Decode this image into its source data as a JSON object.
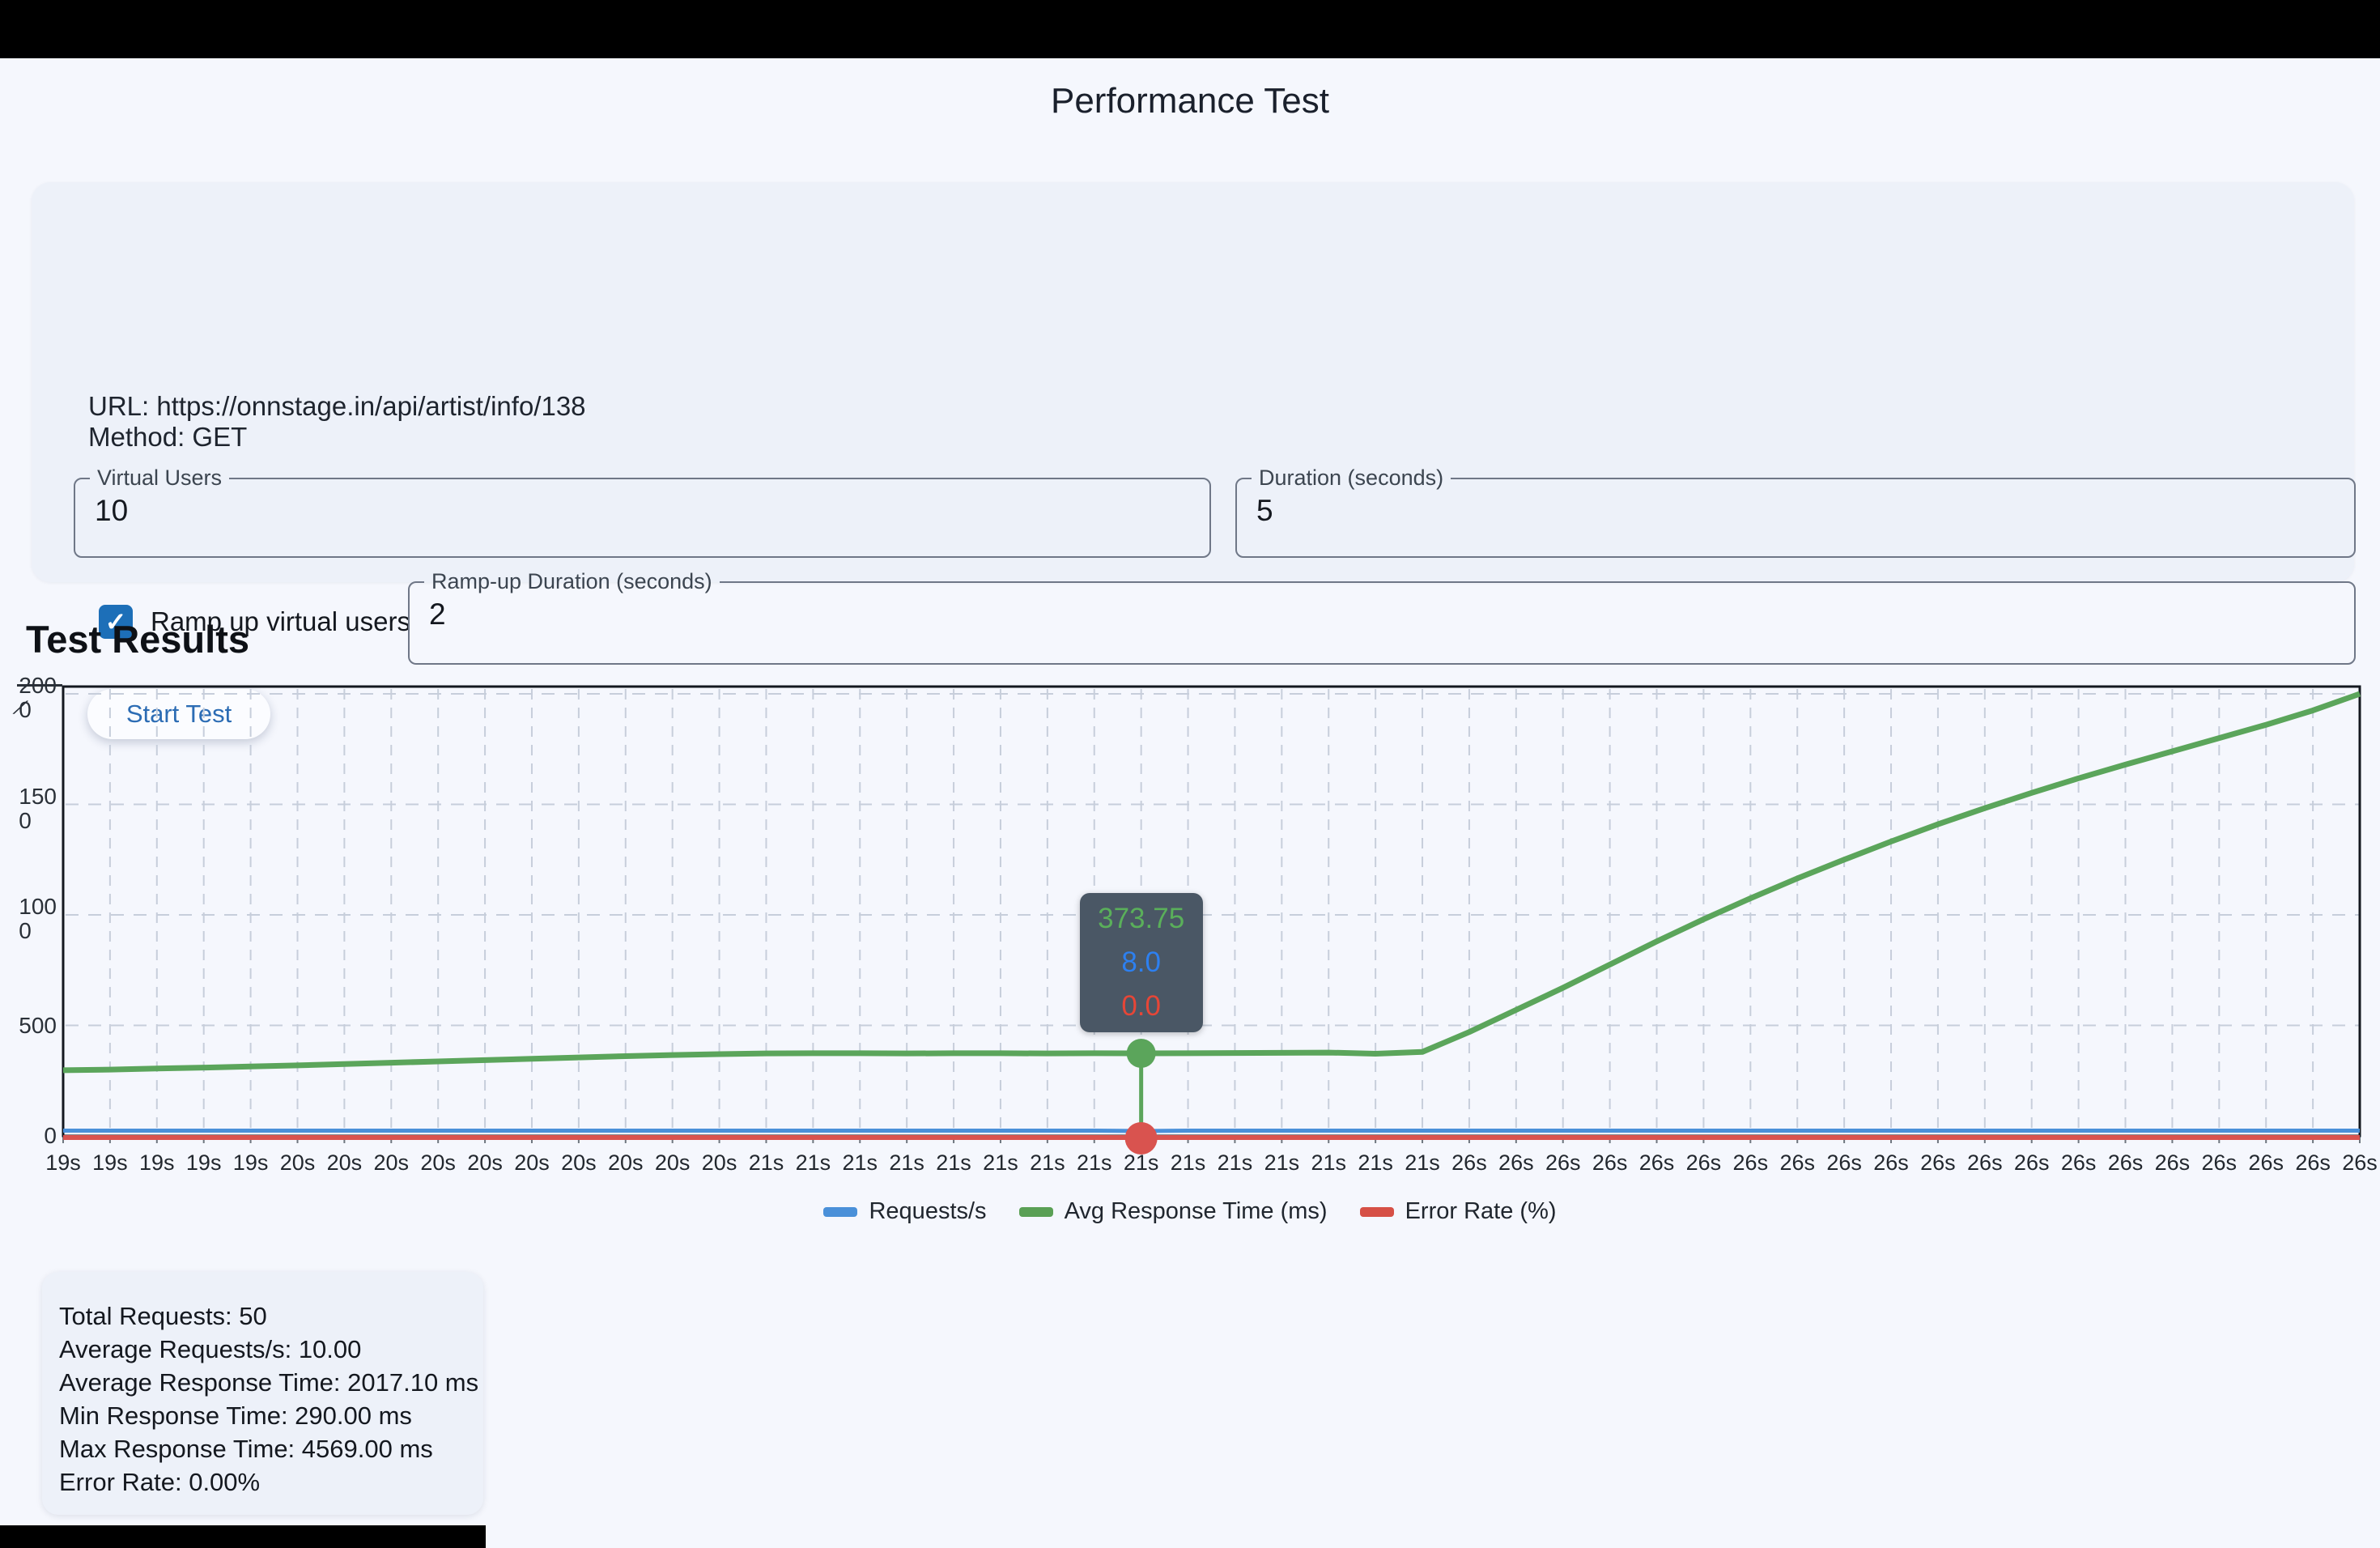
{
  "header": {
    "title": "Performance Test",
    "back_icon": "chevron-left"
  },
  "form": {
    "url_line": "URL: https://onnstage.in/api/artist/info/138",
    "method_line": "Method: GET",
    "virtual_users": {
      "label": "Virtual Users",
      "value": "10"
    },
    "duration": {
      "label": "Duration (seconds)",
      "value": "5"
    },
    "ramp_checkbox": {
      "label": "Ramp up virtual users",
      "checked": true,
      "check_glyph": "✓"
    },
    "ramp_duration": {
      "label": "Ramp-up Duration (seconds)",
      "value": "2"
    },
    "start_button_label": "Start Test"
  },
  "results_heading": "Test Results",
  "chart_data": {
    "type": "line",
    "x_labels": [
      "19s",
      "19s",
      "19s",
      "19s",
      "19s",
      "20s",
      "20s",
      "20s",
      "20s",
      "20s",
      "20s",
      "20s",
      "20s",
      "20s",
      "20s",
      "21s",
      "21s",
      "21s",
      "21s",
      "21s",
      "21s",
      "21s",
      "21s",
      "21s",
      "21s",
      "21s",
      "21s",
      "21s",
      "21s",
      "21s",
      "26s",
      "26s",
      "26s",
      "26s",
      "26s",
      "26s",
      "26s",
      "26s",
      "26s",
      "26s",
      "26s",
      "26s",
      "26s",
      "26s",
      "26s",
      "26s",
      "26s",
      "26s",
      "26s",
      "26s"
    ],
    "ylim": [
      0,
      2000
    ],
    "y_ticks": [
      0,
      500,
      1000,
      1500,
      2000
    ],
    "y_tick_clusters": [
      {
        "value": 2000,
        "lines": "200\n0",
        "overlapped": true
      },
      {
        "value": 1500,
        "lines": "150\n0",
        "overlapped": false
      },
      {
        "value": 1000,
        "lines": "100\n0",
        "overlapped": false
      },
      {
        "value": 500,
        "lines": "500",
        "overlapped": false
      },
      {
        "value": 0,
        "lines": "0",
        "overlapped": false
      }
    ],
    "grid": "dashed",
    "legend_position": "bottom",
    "series": [
      {
        "name": "Requests/s",
        "color": "#4a90d9",
        "axis": "hidden",
        "values": [
          10,
          10,
          10,
          10,
          10,
          10,
          10,
          10,
          10,
          10,
          10,
          10,
          10,
          10,
          10,
          10,
          10,
          10,
          10,
          10,
          10,
          10,
          10,
          8,
          10,
          10,
          10,
          10,
          10,
          10,
          10,
          10,
          10,
          10,
          10,
          10,
          10,
          10,
          10,
          10,
          10,
          10,
          10,
          10,
          10,
          10,
          10,
          10,
          10,
          10
        ]
      },
      {
        "name": "Avg Response Time (ms)",
        "color": "#5ba55b",
        "axis": "left",
        "values": [
          297,
          300,
          305,
          309,
          314,
          319,
          325,
          331,
          337,
          343,
          349,
          355,
          361,
          366,
          370,
          373,
          374,
          374,
          373,
          374,
          374,
          373,
          374,
          373.75,
          374,
          375,
          376,
          377,
          372,
          380,
          470,
          570,
          670,
          775,
          880,
          980,
          1075,
          1165,
          1250,
          1332,
          1410,
          1483,
          1552,
          1618,
          1680,
          1740,
          1800,
          1860,
          1925,
          2000
        ]
      },
      {
        "name": "Error Rate (%)",
        "color": "#d9534f",
        "axis": "hidden",
        "values": [
          0,
          0,
          0,
          0,
          0,
          0,
          0,
          0,
          0,
          0,
          0,
          0,
          0,
          0,
          0,
          0,
          0,
          0,
          0,
          0,
          0,
          0,
          0,
          0,
          0,
          0,
          0,
          0,
          0,
          0,
          0,
          0,
          0,
          0,
          0,
          0,
          0,
          0,
          0,
          0,
          0,
          0,
          0,
          0,
          0,
          0,
          0,
          0,
          0,
          0
        ]
      }
    ],
    "selected_point": {
      "index": 23,
      "x_label": "21s",
      "tooltip_rows": [
        {
          "text": "373.75",
          "color": "#5aaf5a"
        },
        {
          "text": "8.0",
          "color": "#2d80f0"
        },
        {
          "text": "0.0",
          "color": "#e64637"
        }
      ],
      "marker_top_color": "#5ba55b",
      "marker_bottom_color": "#d9534f"
    },
    "legend": [
      {
        "label": "Requests/s",
        "color": "#4a90d9"
      },
      {
        "label": "Avg Response Time (ms)",
        "color": "#5aa055"
      },
      {
        "label": "Error Rate (%)",
        "color": "#d65046"
      }
    ]
  },
  "summary": {
    "lines": [
      "Total Requests: 50",
      "Average Requests/s: 10.00",
      "Average Response Time: 2017.10 ms",
      "Min Response Time: 290.00 ms",
      "Max Response Time: 4569.00 ms",
      "Error Rate: 0.00%"
    ]
  }
}
